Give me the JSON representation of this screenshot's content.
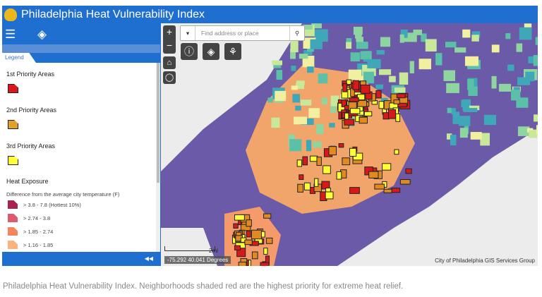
{
  "app": {
    "title": "Philadelphia Heat Vulnerability Index"
  },
  "panel": {
    "tab": "Legend",
    "collapse_icon": "double-chevron-left",
    "priority": [
      {
        "label": "1st Priority Areas",
        "color": "#d7191c"
      },
      {
        "label": "2nd Priority Areas",
        "color": "#e0a030"
      },
      {
        "label": "3rd Priority Areas",
        "color": "#ffff33"
      }
    ],
    "heat": {
      "title": "Heat Exposure",
      "subtitle": "Difference from the average city temperature (F)",
      "items": [
        {
          "label": "> 3.8 - 7.8 (Hottest 10%)",
          "color": "#a8234f"
        },
        {
          "label": "> 2.74 - 3.8",
          "color": "#df5a6c"
        },
        {
          "label": "> 1.85 - 2.74",
          "color": "#f5845a"
        },
        {
          "label": "> 1.16 - 1.85",
          "color": "#fbb37e"
        }
      ]
    }
  },
  "map": {
    "search_placeholder": "Find address or place",
    "scale": "2mi",
    "coords": "-75.292 40.041 Degrees",
    "credit": "City of Philadelphia GIS Services Group"
  },
  "caption": "Philadelphia Heat Vulnerability Index. Neighborhoods shaded red are the highest priority for extreme heat relief."
}
